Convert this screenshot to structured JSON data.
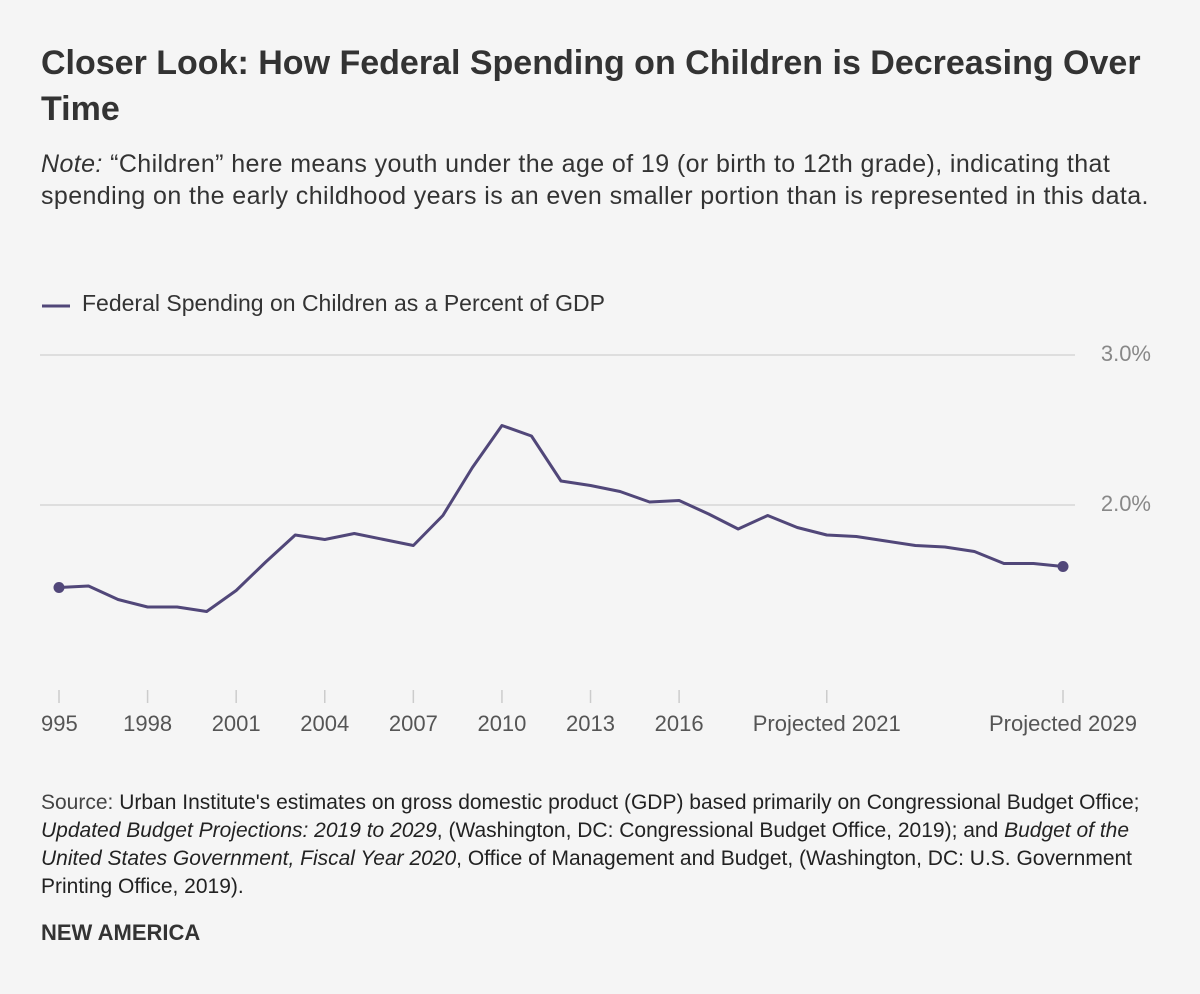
{
  "chart_data": {
    "type": "line",
    "title": "Closer Look: How Federal Spending on Children is Decreasing Over Time",
    "note_label": "Note:",
    "note": "“Children” here means youth under the age of 19 (or birth to 12th grade), indicating that spending on the early childhood years is an even smaller portion than is represented in this data.",
    "source": [
      "Source:",
      " Urban Institute's estimates on gross domestic product (GDP) based primarily on Congressional Budget Office; ",
      "Updated Budget Projections: 2019 to 2029",
      ", (Washington, DC: Congressional Budget Office, 2019); and ",
      "Budget of the United States Government, Fiscal Year 2020",
      ", Office of Management and Budget, (Washington, DC: U.S. Government Printing Office, 2019)."
    ],
    "brand": "NEW AMERICA",
    "categories": [
      "995",
      null,
      null,
      "1998",
      null,
      null,
      "2001",
      null,
      null,
      "2004",
      null,
      null,
      "2007",
      null,
      null,
      "2010",
      null,
      null,
      "2013",
      null,
      null,
      "2016",
      null,
      null,
      null,
      null,
      "Projected 2021",
      null,
      null,
      null,
      null,
      null,
      null,
      null,
      "Projected 2029"
    ],
    "series": [
      {
        "name": "Federal Spending on Children as a Percent of GDP",
        "color": "#514779",
        "values": [
          1.45,
          1.46,
          1.37,
          1.32,
          1.32,
          1.29,
          1.43,
          1.62,
          1.8,
          1.77,
          1.81,
          1.77,
          1.73,
          1.93,
          2.25,
          2.53,
          2.46,
          2.16,
          2.13,
          2.09,
          2.02,
          2.03,
          1.94,
          1.84,
          1.93,
          1.85,
          1.8,
          1.79,
          1.76,
          1.73,
          1.72,
          1.69,
          1.61,
          1.61,
          1.59
        ]
      }
    ],
    "ylim": [
      0.8,
      3.0
    ],
    "yticks": [
      {
        "value": 2.0,
        "label": "2.0%"
      },
      {
        "value": 3.0,
        "label": "3.0%"
      }
    ],
    "grid": true,
    "legend": "top-left"
  }
}
